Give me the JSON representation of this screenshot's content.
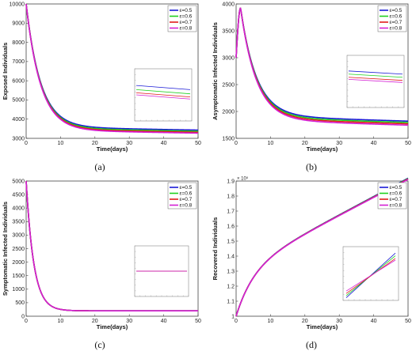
{
  "colors": {
    "e05": "#1a1ad6",
    "e06": "#1fd11f",
    "e07": "#e01b1b",
    "e08": "#d41fd4"
  },
  "chart_data": [
    {
      "id": "a",
      "type": "line",
      "caption": "(a)",
      "xlabel": "Time(days)",
      "ylabel": "Exposed Individuals",
      "xlim": [
        0,
        50
      ],
      "ylim": [
        3000,
        10000
      ],
      "xticks": [
        0,
        10,
        20,
        30,
        40,
        50
      ],
      "yticks": [
        3000,
        4000,
        5000,
        6000,
        7000,
        8000,
        9000,
        10000
      ],
      "ytick_labels": [
        "3000",
        "4000",
        "5000",
        "6000",
        "7000",
        "8000",
        "9000",
        "10000"
      ],
      "y_exponent": "",
      "legend": "top-right",
      "model": {
        "kind": "decay",
        "start": 10000,
        "plateau": 3500,
        "slope": -3.2,
        "rate": 0.24,
        "offsets": [
          90,
          30,
          -25,
          -70
        ]
      },
      "series": [
        {
          "name": "ε=0.5",
          "color": "#1a1ad6"
        },
        {
          "name": "ε=0.6",
          "color": "#1fd11f"
        },
        {
          "name": "ε=0.7",
          "color": "#e01b1b"
        },
        {
          "name": "ε=0.8",
          "color": "#d41fd4"
        }
      ],
      "inset": {
        "type": "offset-lines",
        "offsets": [
          0.32,
          0.4,
          0.46,
          0.5
        ],
        "slope": 0.08
      }
    },
    {
      "id": "b",
      "type": "line",
      "caption": "(b)",
      "xlabel": "Time(days)",
      "ylabel": "Asymptomatic Infected Individuals",
      "xlim": [
        0,
        50
      ],
      "ylim": [
        1500,
        4000
      ],
      "xticks": [
        0,
        10,
        20,
        30,
        40,
        50
      ],
      "yticks": [
        1500,
        2000,
        2500,
        3000,
        3500,
        4000
      ],
      "ytick_labels": [
        "1500",
        "2000",
        "2500",
        "3000",
        "3500",
        "4000"
      ],
      "y_exponent": "",
      "legend": "top-right",
      "model": {
        "kind": "peak",
        "start": 3000,
        "peak": 3930,
        "peak_t": 1.3,
        "plateau": 1880,
        "slope": -2.0,
        "rate": 0.22,
        "offsets": [
          40,
          15,
          -10,
          -35
        ]
      },
      "series": [
        {
          "name": "ε=0.5",
          "color": "#1a1ad6"
        },
        {
          "name": "ε=0.6",
          "color": "#1fd11f"
        },
        {
          "name": "ε=0.7",
          "color": "#e01b1b"
        },
        {
          "name": "ε=0.8",
          "color": "#d41fd4"
        }
      ],
      "inset": {
        "type": "offset-lines",
        "offsets": [
          0.3,
          0.36,
          0.42,
          0.46
        ],
        "slope": 0.06
      }
    },
    {
      "id": "c",
      "type": "line",
      "caption": "(c)",
      "xlabel": "Time(days)",
      "ylabel": "Symptomatic Infected Individuals",
      "xlim": [
        0,
        50
      ],
      "ylim": [
        0,
        5000
      ],
      "xticks": [
        0,
        10,
        20,
        30,
        40,
        50
      ],
      "yticks": [
        0,
        500,
        1000,
        1500,
        2000,
        2500,
        3000,
        3500,
        4000,
        4500,
        5000
      ],
      "ytick_labels": [
        "0",
        "500",
        "1000",
        "1500",
        "2000",
        "2500",
        "3000",
        "3500",
        "4000",
        "4500",
        "5000"
      ],
      "y_exponent": "",
      "legend": "top-right",
      "model": {
        "kind": "decay",
        "start": 5000,
        "plateau": 200,
        "slope": 0,
        "rate": 0.45,
        "offsets": [
          0,
          0,
          0,
          0
        ]
      },
      "series": [
        {
          "name": "ε=0.5",
          "color": "#1a1ad6"
        },
        {
          "name": "ε=0.6",
          "color": "#1fd11f"
        },
        {
          "name": "ε=0.7",
          "color": "#e01b1b"
        },
        {
          "name": "ε=0.8",
          "color": "#d41fd4"
        }
      ],
      "inset": {
        "type": "offset-lines",
        "offsets": [
          0.5,
          0.5,
          0.5,
          0.5
        ],
        "slope": 0
      }
    },
    {
      "id": "d",
      "type": "line",
      "caption": "(d)",
      "xlabel": "Time(days)",
      "ylabel": "Recovered Individuals",
      "xlim": [
        0,
        50
      ],
      "ylim": [
        1.0,
        1.9
      ],
      "xticks": [
        0,
        10,
        20,
        30,
        40,
        50
      ],
      "yticks": [
        1.0,
        1.1,
        1.2,
        1.3,
        1.4,
        1.5,
        1.6,
        1.7,
        1.8,
        1.9
      ],
      "ytick_labels": [
        "1",
        "1.1",
        "1.2",
        "1.3",
        "1.4",
        "1.5",
        "1.6",
        "1.7",
        "1.8",
        "1.9"
      ],
      "y_exponent": "× 10⁵",
      "legend": "top-right",
      "model": {
        "kind": "grow",
        "start": 1.0,
        "a": 0.31,
        "b": 0.0121,
        "rate": 0.2,
        "offsets": [
          0.004,
          0.0013,
          -0.0013,
          -0.004
        ]
      },
      "series": [
        {
          "name": "ε=0.5",
          "color": "#1a1ad6"
        },
        {
          "name": "ε=0.6",
          "color": "#1fd11f"
        },
        {
          "name": "ε=0.7",
          "color": "#e01b1b"
        },
        {
          "name": "ε=0.8",
          "color": "#d41fd4"
        }
      ],
      "inset": {
        "type": "rising-lines",
        "offsets": [
          0.0,
          0.05,
          0.1,
          0.13
        ]
      }
    }
  ]
}
